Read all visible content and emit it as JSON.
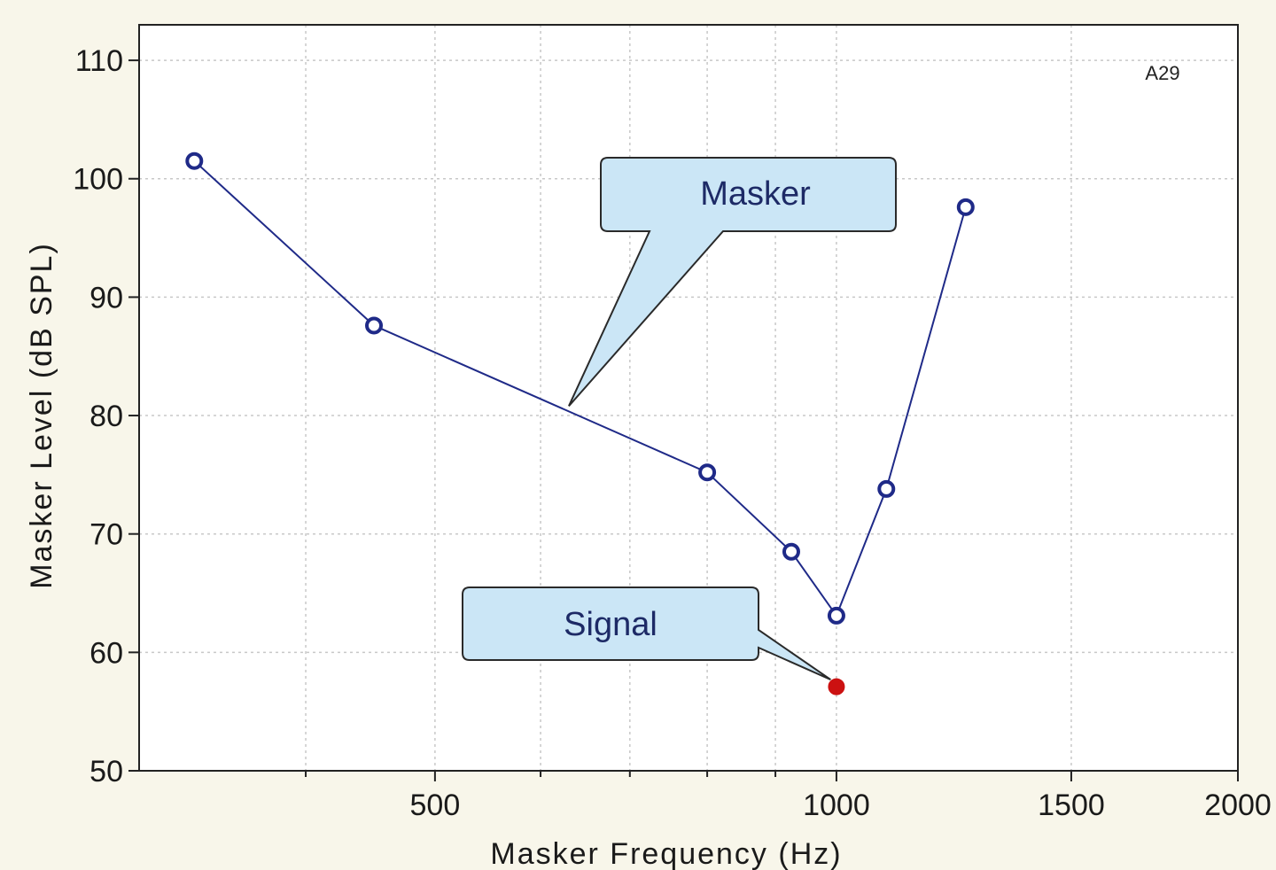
{
  "chart_data": {
    "type": "line",
    "title": "",
    "xlabel": "Masker Frequency (Hz)",
    "ylabel": "Masker Level (dB SPL)",
    "xlim": [
      300,
      2000
    ],
    "ylim": [
      50,
      113
    ],
    "xscale": "log",
    "grid": true,
    "x_ticks": [
      500,
      1000,
      1500,
      2000
    ],
    "y_ticks": [
      50,
      60,
      70,
      80,
      90,
      100,
      110
    ],
    "corner_label": "A29",
    "series": [
      {
        "values_x": [
          330,
          450,
          800,
          925,
          1000,
          1090,
          1250
        ],
        "values_y": [
          101.5,
          87.6,
          75.2,
          68.5,
          63.1,
          73.8,
          97.6
        ],
        "color": "#1f2a88",
        "marker": "open-circle"
      },
      {
        "values_x": [
          1000
        ],
        "values_y": [
          57.1
        ],
        "color": "#cc1111",
        "marker": "filled-circle"
      }
    ],
    "annotations": [
      {
        "text": "Masker",
        "points_to": [
          630,
          80.8
        ]
      },
      {
        "text": "Signal",
        "points_to": [
          990,
          57.7
        ]
      }
    ]
  }
}
